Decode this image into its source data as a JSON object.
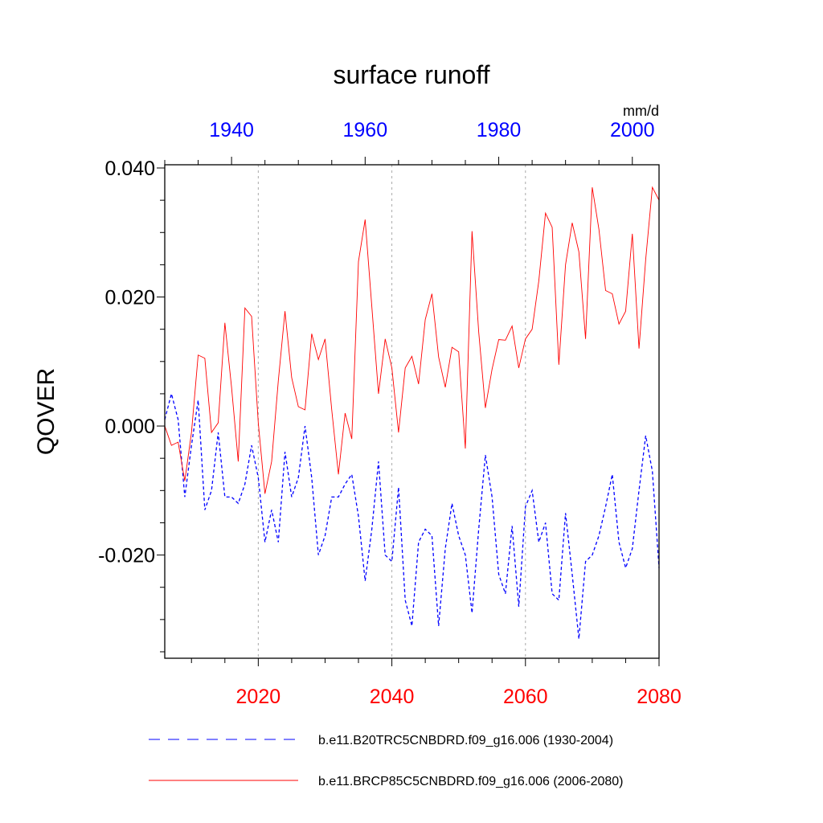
{
  "chart_data": {
    "type": "line",
    "title": "surface runoff",
    "units": "mm/d",
    "ylabel": "QOVER",
    "ylim": [
      -0.036,
      0.0405
    ],
    "y_ticks": [
      {
        "value": 0.04,
        "label": "0.040"
      },
      {
        "value": 0.02,
        "label": "0.020"
      },
      {
        "value": 0.0,
        "label": "0.000"
      },
      {
        "value": -0.02,
        "label": "-0.020"
      }
    ],
    "y_minor_step": 0.005,
    "bottom_axis": {
      "xlim": [
        2006,
        2080
      ],
      "ticks": [
        "2020",
        "2040",
        "2060",
        "2080"
      ],
      "tick_values": [
        2020,
        2040,
        2060,
        2080
      ],
      "color": "#ff0000"
    },
    "top_axis": {
      "xlim": [
        1930,
        2004
      ],
      "ticks": [
        "1940",
        "1960",
        "1980",
        "2000"
      ],
      "tick_values": [
        1940,
        1960,
        1980,
        2000
      ],
      "color": "#0000ff"
    },
    "vertical_gridlines_at_bottom_years": [
      2020,
      2040,
      2060
    ],
    "series": [
      {
        "name": "b.e11.B20TRC5CNBDRD.f09_g16.006 (1930-2004)",
        "axis": "top",
        "style": "dashed",
        "color": "#0000ff",
        "x_start": 1930,
        "values": [
          0.001,
          0.005,
          0.001,
          -0.011,
          -0.003,
          0.004,
          -0.013,
          -0.01,
          -0.001,
          -0.011,
          -0.011,
          -0.012,
          -0.009,
          -0.003,
          -0.008,
          -0.018,
          -0.013,
          -0.018,
          -0.004,
          -0.011,
          -0.008,
          0.0,
          -0.008,
          -0.02,
          -0.017,
          -0.011,
          -0.011,
          -0.009,
          -0.0075,
          -0.014,
          -0.024,
          -0.016,
          -0.0055,
          -0.02,
          -0.021,
          -0.0095,
          -0.027,
          -0.031,
          -0.018,
          -0.016,
          -0.017,
          -0.031,
          -0.019,
          -0.012,
          -0.017,
          -0.02,
          -0.029,
          -0.016,
          -0.0045,
          -0.011,
          -0.023,
          -0.026,
          -0.0155,
          -0.028,
          -0.0125,
          -0.01,
          -0.018,
          -0.015,
          -0.026,
          -0.027,
          -0.0135,
          -0.023,
          -0.033,
          -0.021,
          -0.02,
          -0.017,
          -0.0125,
          -0.0075,
          -0.018,
          -0.022,
          -0.019,
          -0.01,
          -0.0015,
          -0.007,
          -0.022
        ]
      },
      {
        "name": "b.e11.BRCP85C5CNBDRD.f09_g16.006 (2006-2080)",
        "axis": "bottom",
        "style": "solid",
        "color": "#ff0000",
        "x_start": 2006,
        "values": [
          0.0,
          -0.003,
          -0.0025,
          -0.0085,
          -0.001,
          0.011,
          0.0105,
          -0.001,
          0.0005,
          0.016,
          0.006,
          -0.0055,
          0.0183,
          0.017,
          0.0005,
          -0.0105,
          -0.0055,
          0.007,
          0.0178,
          0.0075,
          0.003,
          0.0025,
          0.0143,
          0.0103,
          0.0135,
          0.0025,
          -0.0075,
          0.002,
          -0.002,
          0.0255,
          0.032,
          0.0185,
          0.005,
          0.0135,
          0.009,
          -0.001,
          0.009,
          0.0108,
          0.0065,
          0.0165,
          0.0205,
          0.0107,
          0.006,
          0.0122,
          0.0115,
          -0.0035,
          0.0302,
          0.0146,
          0.0028,
          0.0088,
          0.0134,
          0.0133,
          0.0155,
          0.009,
          0.0135,
          0.015,
          0.0225,
          0.033,
          0.0308,
          0.0095,
          0.025,
          0.0315,
          0.027,
          0.0135,
          0.037,
          0.0305,
          0.021,
          0.0205,
          0.0158,
          0.0178,
          0.0298,
          0.012,
          0.0258,
          0.037,
          0.035
        ]
      }
    ]
  }
}
